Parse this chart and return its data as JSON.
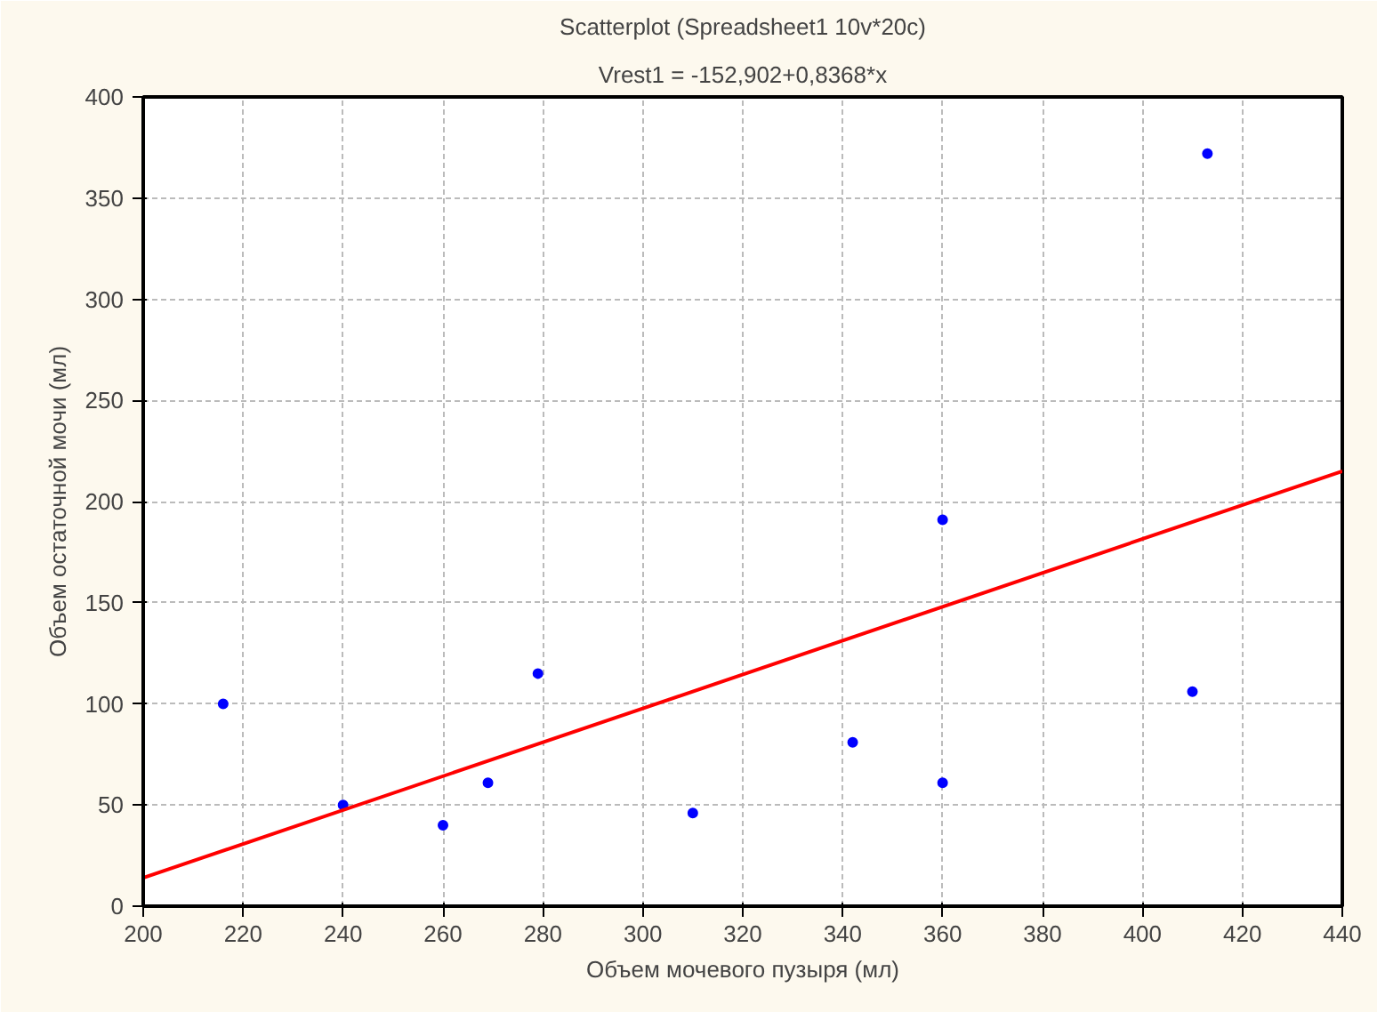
{
  "chart_data": {
    "type": "scatter",
    "title": "Scatterplot (Spreadsheet1 10v*20c)",
    "subtitle": "Vrest1 = -152,902+0,8368*x",
    "xlabel": "Объем мочевого пузыря (мл)",
    "ylabel": "Объем остаточной мочи (мл)",
    "series": [
      {
        "color": "#0000ff",
        "marker": "circle",
        "x": [
          216,
          240,
          260,
          269,
          279,
          310,
          342,
          360,
          360,
          410,
          413
        ],
        "values": [
          100,
          50,
          40,
          61,
          115,
          46,
          81,
          191,
          61,
          106,
          372
        ]
      },
      {
        "type": "line",
        "marker": "none",
        "color": "#ff0000",
        "x": [
          200,
          440
        ],
        "values": [
          14,
          215
        ]
      }
    ],
    "xlim": [
      200,
      440
    ],
    "ylim": [
      0,
      400
    ],
    "xticks": [
      200,
      220,
      240,
      260,
      280,
      300,
      320,
      340,
      360,
      380,
      400,
      420,
      440
    ],
    "yticks": [
      0,
      50,
      100,
      150,
      200,
      250,
      300,
      350,
      400
    ],
    "grid": true
  }
}
